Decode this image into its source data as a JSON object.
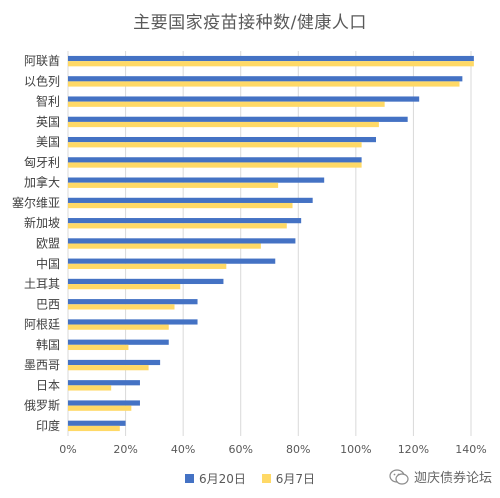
{
  "chart_data": {
    "type": "bar",
    "orientation": "horizontal",
    "title": "主要国家疫苗接种数/健康人口",
    "categories": [
      "阿联酋",
      "以色列",
      "智利",
      "英国",
      "美国",
      "匈牙利",
      "加拿大",
      "塞尔维亚",
      "新加坡",
      "欧盟",
      "中国",
      "土耳其",
      "巴西",
      "阿根廷",
      "韩国",
      "墨西哥",
      "日本",
      "俄罗斯",
      "印度"
    ],
    "series": [
      {
        "name": "6月20日",
        "color": "#4472C4",
        "values": [
          1.41,
          1.37,
          1.22,
          1.18,
          1.07,
          1.02,
          0.89,
          0.85,
          0.81,
          0.79,
          0.72,
          0.54,
          0.45,
          0.45,
          0.35,
          0.32,
          0.25,
          0.25,
          0.2
        ]
      },
      {
        "name": "6月7日",
        "color": "#FFD966",
        "values": [
          1.41,
          1.36,
          1.1,
          1.08,
          1.02,
          1.02,
          0.73,
          0.78,
          0.76,
          0.67,
          0.55,
          0.39,
          0.37,
          0.35,
          0.21,
          0.28,
          0.15,
          0.22,
          0.18
        ]
      }
    ],
    "xlim": [
      0,
      1.4
    ],
    "xticks": [
      "0%",
      "20%",
      "40%",
      "60%",
      "80%",
      "100%",
      "120%",
      "140%"
    ],
    "grid": true,
    "legend": "bottom"
  },
  "watermark": "迦庆债券论坛"
}
